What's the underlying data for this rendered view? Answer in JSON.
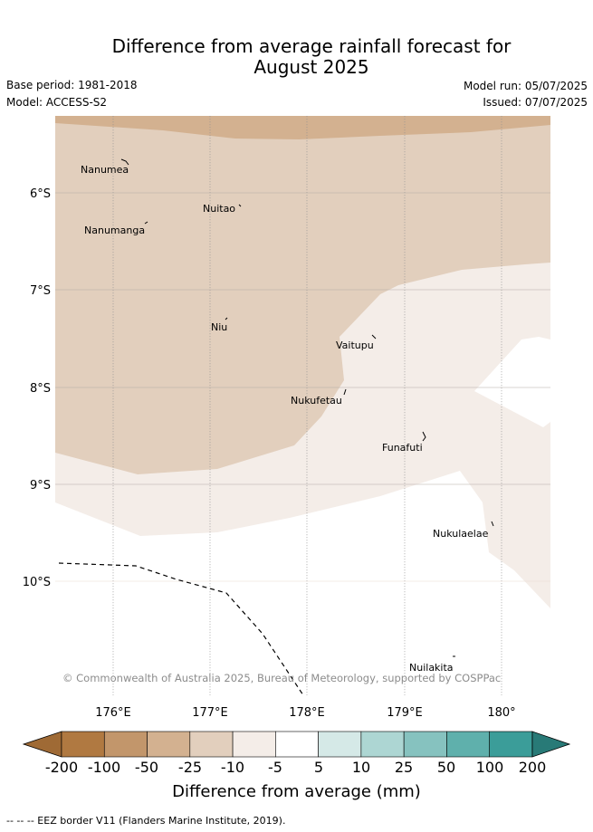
{
  "title_line1": "Difference from average rainfall forecast for",
  "title_line2": "August 2025",
  "base_period": "Base period: 1981-2018",
  "model": "Model: ACCESS-S2",
  "model_run": "Model run: 05/07/2025",
  "issued": "Issued: 07/07/2025",
  "copyright": "© Commonwealth of Australia 2025, Bureau of Meteorology, supported by COSPPac",
  "lon_ticks": [
    "176°E",
    "177°E",
    "178°E",
    "179°E",
    "180°"
  ],
  "lat_ticks": [
    "6°S",
    "7°S",
    "8°S",
    "9°S",
    "10°S"
  ],
  "places": [
    {
      "name": "Nanumea"
    },
    {
      "name": "Nuitao"
    },
    {
      "name": "Nanumanga"
    },
    {
      "name": "Niu"
    },
    {
      "name": "Vaitupu"
    },
    {
      "name": "Nukufetau"
    },
    {
      "name": "Funafuti"
    },
    {
      "name": "Nukulaelae"
    },
    {
      "name": "Nuilakita"
    }
  ],
  "colorbar": {
    "labels": [
      "-200",
      "-100",
      "-50",
      "-25",
      "-10",
      "-5",
      "5",
      "10",
      "25",
      "50",
      "100",
      "200"
    ],
    "colors": [
      "#9f6a35",
      "#b07941",
      "#c2966b",
      "#d3b190",
      "#e2cfbd",
      "#f4ede8",
      "#ffffff",
      "#d5e9e7",
      "#add6d3",
      "#86c2bf",
      "#5fb0ac",
      "#3b9d99",
      "#287a77"
    ],
    "title": "Difference from average (mm)"
  },
  "legend_text": "--  --  -- EEZ border V11 (Flanders Marine Institute, 2019)."
}
